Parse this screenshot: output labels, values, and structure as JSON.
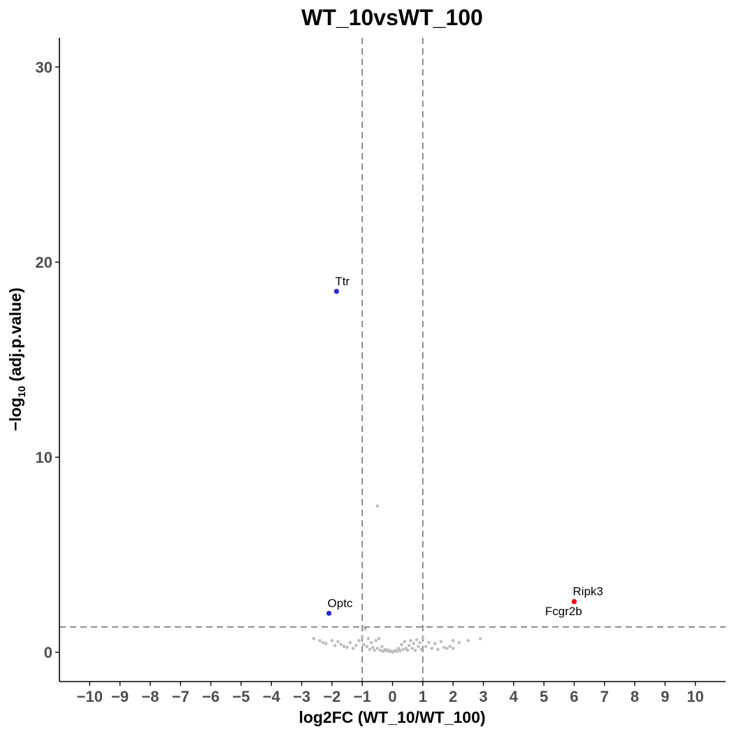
{
  "chart_data": {
    "type": "scatter",
    "title": "WT_10vsWT_100",
    "xlabel": "log2FC (WT_10/WT_100)",
    "ylabel_prefix": "−log",
    "ylabel_sub": "10",
    "ylabel_suffix": " (adj.p.value)",
    "xlim": [
      -11,
      11
    ],
    "ylim": [
      -1.5,
      31.5
    ],
    "xticks": [
      -10,
      -9,
      -8,
      -7,
      -6,
      -5,
      -4,
      -3,
      -2,
      -1,
      0,
      1,
      2,
      3,
      4,
      5,
      6,
      7,
      8,
      9,
      10
    ],
    "xtick_labels": [
      "−10",
      "−9",
      "−8",
      "−7",
      "−6",
      "−5",
      "−4",
      "−3",
      "−2",
      "−1",
      "0",
      "1",
      "2",
      "3",
      "4",
      "5",
      "6",
      "7",
      "8",
      "9",
      "10"
    ],
    "yticks": [
      0,
      10,
      20,
      30
    ],
    "ytick_labels": [
      "0",
      "10",
      "20",
      "30"
    ],
    "thresholds": {
      "log2fc": [
        -1,
        1
      ],
      "neg_log10_p": 1.3
    },
    "colors": {
      "up": "#ff0000",
      "down": "#2828e0",
      "ns": "#bebebe",
      "threshold_line": "#7f7f7f"
    },
    "series": [
      {
        "name": "Up",
        "color": "#ff0000",
        "points": [
          {
            "x": 6.0,
            "y": 2.6,
            "label": "Ripk3"
          }
        ]
      },
      {
        "name": "Down",
        "color": "#2828e0",
        "points": [
          {
            "x": -1.85,
            "y": 18.5,
            "label": "Ttr"
          },
          {
            "x": -2.1,
            "y": 2.0,
            "label": "Optc"
          }
        ]
      },
      {
        "name": "NS",
        "color": "#bebebe",
        "points": [
          {
            "x": -0.5,
            "y": 7.5
          },
          {
            "x": -2.6,
            "y": 0.7
          },
          {
            "x": -2.4,
            "y": 0.6
          },
          {
            "x": -2.3,
            "y": 0.5
          },
          {
            "x": -2.2,
            "y": 0.45
          },
          {
            "x": -2.0,
            "y": 0.6
          },
          {
            "x": -1.9,
            "y": 0.35
          },
          {
            "x": -1.8,
            "y": 0.55
          },
          {
            "x": -1.7,
            "y": 0.4
          },
          {
            "x": -1.6,
            "y": 0.3
          },
          {
            "x": -1.5,
            "y": 0.25
          },
          {
            "x": -1.4,
            "y": 0.5
          },
          {
            "x": -1.3,
            "y": 0.2
          },
          {
            "x": -1.2,
            "y": 0.35
          },
          {
            "x": -1.1,
            "y": 0.6
          },
          {
            "x": -1.0,
            "y": 0.8
          },
          {
            "x": -0.95,
            "y": 0.4
          },
          {
            "x": -0.9,
            "y": 1.2
          },
          {
            "x": -0.85,
            "y": 0.3
          },
          {
            "x": -0.8,
            "y": 0.7
          },
          {
            "x": -0.75,
            "y": 0.15
          },
          {
            "x": -0.7,
            "y": 0.5
          },
          {
            "x": -0.65,
            "y": 0.25
          },
          {
            "x": -0.6,
            "y": 0.1
          },
          {
            "x": -0.55,
            "y": 0.6
          },
          {
            "x": -0.5,
            "y": 0.2
          },
          {
            "x": -0.45,
            "y": 0.7
          },
          {
            "x": -0.4,
            "y": 0.1
          },
          {
            "x": -0.35,
            "y": 0.3
          },
          {
            "x": -0.3,
            "y": 0.05
          },
          {
            "x": -0.25,
            "y": 0.15
          },
          {
            "x": -0.2,
            "y": 0.08
          },
          {
            "x": -0.15,
            "y": 0.12
          },
          {
            "x": -0.1,
            "y": 0.04
          },
          {
            "x": -0.05,
            "y": 0.06
          },
          {
            "x": 0.0,
            "y": 0.02
          },
          {
            "x": 0.05,
            "y": 0.05
          },
          {
            "x": 0.1,
            "y": 0.1
          },
          {
            "x": 0.15,
            "y": 0.05
          },
          {
            "x": 0.2,
            "y": 0.2
          },
          {
            "x": 0.25,
            "y": 0.08
          },
          {
            "x": 0.3,
            "y": 0.4
          },
          {
            "x": 0.35,
            "y": 0.15
          },
          {
            "x": 0.4,
            "y": 0.55
          },
          {
            "x": 0.45,
            "y": 0.2
          },
          {
            "x": 0.5,
            "y": 0.1
          },
          {
            "x": 0.55,
            "y": 0.35
          },
          {
            "x": 0.6,
            "y": 0.6
          },
          {
            "x": 0.65,
            "y": 0.2
          },
          {
            "x": 0.7,
            "y": 0.45
          },
          {
            "x": 0.75,
            "y": 0.1
          },
          {
            "x": 0.8,
            "y": 0.65
          },
          {
            "x": 0.85,
            "y": 0.3
          },
          {
            "x": 0.9,
            "y": 0.5
          },
          {
            "x": 0.95,
            "y": 0.15
          },
          {
            "x": 1.0,
            "y": 0.75
          },
          {
            "x": 1.1,
            "y": 0.3
          },
          {
            "x": 1.2,
            "y": 0.5
          },
          {
            "x": 1.3,
            "y": 0.2
          },
          {
            "x": 1.4,
            "y": 0.45
          },
          {
            "x": 1.5,
            "y": 0.15
          },
          {
            "x": 1.6,
            "y": 0.55
          },
          {
            "x": 1.7,
            "y": 0.25
          },
          {
            "x": 1.8,
            "y": 0.2
          },
          {
            "x": 1.9,
            "y": 0.3
          },
          {
            "x": 2.0,
            "y": 0.2
          },
          {
            "x": 2.0,
            "y": 0.6
          },
          {
            "x": 2.2,
            "y": 0.5
          },
          {
            "x": 2.5,
            "y": 0.6
          },
          {
            "x": 2.9,
            "y": 0.7
          }
        ]
      }
    ],
    "legend": "none",
    "grid": false
  },
  "annotations": [
    {
      "label": "Fcgr2b",
      "x": 5.65,
      "y": 1.9
    }
  ]
}
